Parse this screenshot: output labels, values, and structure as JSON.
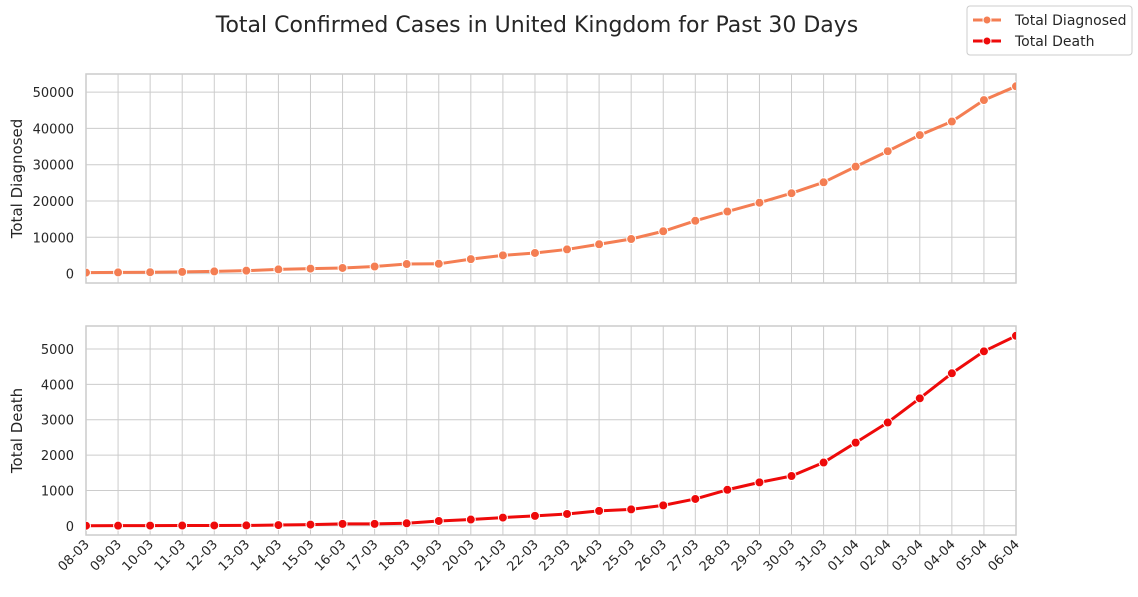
{
  "chart_data": {
    "type": "line",
    "title": "Total Confirmed Cases in United Kingdom for Past 30 Days",
    "legend": {
      "placement": "top-right",
      "entries": [
        "Total Diagnosed",
        "Total Death"
      ]
    },
    "grid": true,
    "categories": [
      "08-03",
      "09-03",
      "10-03",
      "11-03",
      "12-03",
      "13-03",
      "14-03",
      "15-03",
      "16-03",
      "17-03",
      "18-03",
      "19-03",
      "20-03",
      "21-03",
      "22-03",
      "23-03",
      "24-03",
      "25-03",
      "26-03",
      "27-03",
      "28-03",
      "29-03",
      "30-03",
      "31-03",
      "01-04",
      "02-04",
      "03-04",
      "04-04",
      "05-04",
      "06-04"
    ],
    "subplots": [
      {
        "ylabel": "Total Diagnosed",
        "ylim": [
          -2600,
          55000
        ],
        "yticks": [
          0,
          10000,
          20000,
          30000,
          40000,
          50000
        ],
        "series": [
          {
            "name": "Total Diagnosed",
            "color": "#f47e53",
            "values": [
              273,
              321,
              373,
              456,
              590,
              798,
              1140,
              1372,
              1543,
              1950,
              2626,
              2689,
              3983,
              5018,
              5683,
              6650,
              8077,
              9529,
              11658,
              14543,
              17089,
              19522,
              22141,
              25150,
              29474,
              33718,
              38168,
              41903,
              47806,
              51608
            ]
          }
        ]
      },
      {
        "ylabel": "Total Death",
        "ylim": [
          -260,
          5650
        ],
        "yticks": [
          0,
          1000,
          2000,
          3000,
          4000,
          5000
        ],
        "series": [
          {
            "name": "Total Death",
            "color": "#ee0a0a",
            "values": [
              3,
              4,
              6,
              8,
              10,
              11,
              21,
              35,
              55,
              55,
              71,
              137,
              177,
              233,
              281,
              335,
              422,
              465,
              578,
              759,
              1019,
              1228,
              1408,
              1789,
              2352,
              2921,
              3605,
              4313,
              4934,
              5373
            ]
          }
        ]
      }
    ]
  }
}
